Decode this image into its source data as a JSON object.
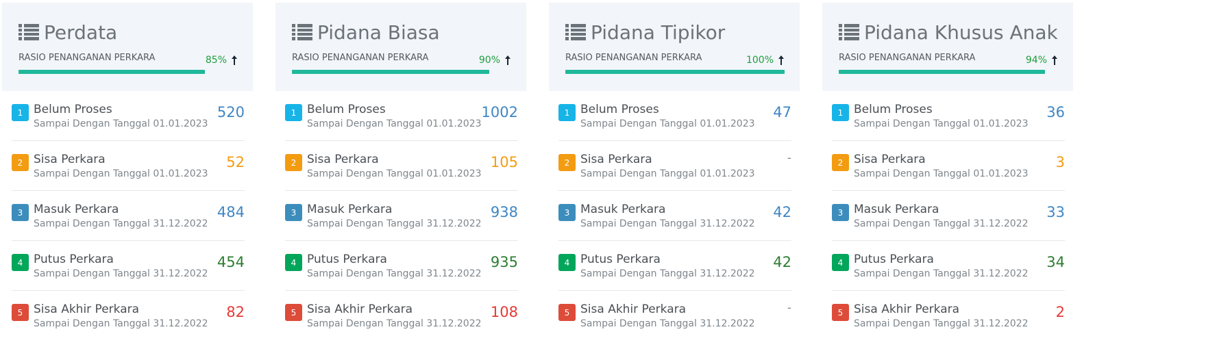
{
  "ratio_label": "RASIO PENANGANAN PERKARA",
  "colors": {
    "info": "#17b4e8",
    "warning": "#f39c12",
    "primary": "#3c8dbc",
    "success": "#00a65a",
    "danger": "#dd4b39",
    "value_info": "#3f86c4",
    "value_warning": "#f39c12",
    "value_primary": "#3f86c4",
    "value_success": "#2e7d32",
    "value_danger": "#e53935",
    "value_dash": "#888888",
    "bar": "#1fb89a"
  },
  "cards": [
    {
      "title": "Perdata",
      "ratio_percent": "85%",
      "ratio_value": 85,
      "items": [
        {
          "num": "1",
          "title": "Belum Proses",
          "sub": "Sampai Dengan Tanggal 01.01.2023",
          "value": "520"
        },
        {
          "num": "2",
          "title": "Sisa Perkara",
          "sub": "Sampai Dengan Tanggal 01.01.2023",
          "value": "52"
        },
        {
          "num": "3",
          "title": "Masuk Perkara",
          "sub": "Sampai Dengan Tanggal 31.12.2022",
          "value": "484"
        },
        {
          "num": "4",
          "title": "Putus Perkara",
          "sub": "Sampai Dengan Tanggal 31.12.2022",
          "value": "454"
        },
        {
          "num": "5",
          "title": "Sisa Akhir Perkara",
          "sub": "Sampai Dengan Tanggal 31.12.2022",
          "value": "82"
        }
      ]
    },
    {
      "title": "Pidana Biasa",
      "ratio_percent": "90%",
      "ratio_value": 90,
      "items": [
        {
          "num": "1",
          "title": "Belum Proses",
          "sub": "Sampai Dengan Tanggal 01.01.2023",
          "value": "1002"
        },
        {
          "num": "2",
          "title": "Sisa Perkara",
          "sub": "Sampai Dengan Tanggal 01.01.2023",
          "value": "105"
        },
        {
          "num": "3",
          "title": "Masuk Perkara",
          "sub": "Sampai Dengan Tanggal 31.12.2022",
          "value": "938"
        },
        {
          "num": "4",
          "title": "Putus Perkara",
          "sub": "Sampai Dengan Tanggal 31.12.2022",
          "value": "935"
        },
        {
          "num": "5",
          "title": "Sisa Akhir Perkara",
          "sub": "Sampai Dengan Tanggal 31.12.2022",
          "value": "108"
        }
      ]
    },
    {
      "title": "Pidana Tipikor",
      "ratio_percent": "100%",
      "ratio_value": 100,
      "items": [
        {
          "num": "1",
          "title": "Belum Proses",
          "sub": "Sampai Dengan Tanggal 01.01.2023",
          "value": "47"
        },
        {
          "num": "2",
          "title": "Sisa Perkara",
          "sub": "Sampai Dengan Tanggal 01.01.2023",
          "value": "-"
        },
        {
          "num": "3",
          "title": "Masuk Perkara",
          "sub": "Sampai Dengan Tanggal 31.12.2022",
          "value": "42"
        },
        {
          "num": "4",
          "title": "Putus Perkara",
          "sub": "Sampai Dengan Tanggal 31.12.2022",
          "value": "42"
        },
        {
          "num": "5",
          "title": "Sisa Akhir Perkara",
          "sub": "Sampai Dengan Tanggal 31.12.2022",
          "value": "-"
        }
      ]
    },
    {
      "title": "Pidana Khusus Anak",
      "ratio_percent": "94%",
      "ratio_value": 94,
      "items": [
        {
          "num": "1",
          "title": "Belum Proses",
          "sub": "Sampai Dengan Tanggal 01.01.2023",
          "value": "36"
        },
        {
          "num": "2",
          "title": "Sisa Perkara",
          "sub": "Sampai Dengan Tanggal 01.01.2023",
          "value": "3"
        },
        {
          "num": "3",
          "title": "Masuk Perkara",
          "sub": "Sampai Dengan Tanggal 31.12.2022",
          "value": "33"
        },
        {
          "num": "4",
          "title": "Putus Perkara",
          "sub": "Sampai Dengan Tanggal 31.12.2022",
          "value": "34"
        },
        {
          "num": "5",
          "title": "Sisa Akhir Perkara",
          "sub": "Sampai Dengan Tanggal 31.12.2022",
          "value": "2"
        }
      ]
    }
  ]
}
